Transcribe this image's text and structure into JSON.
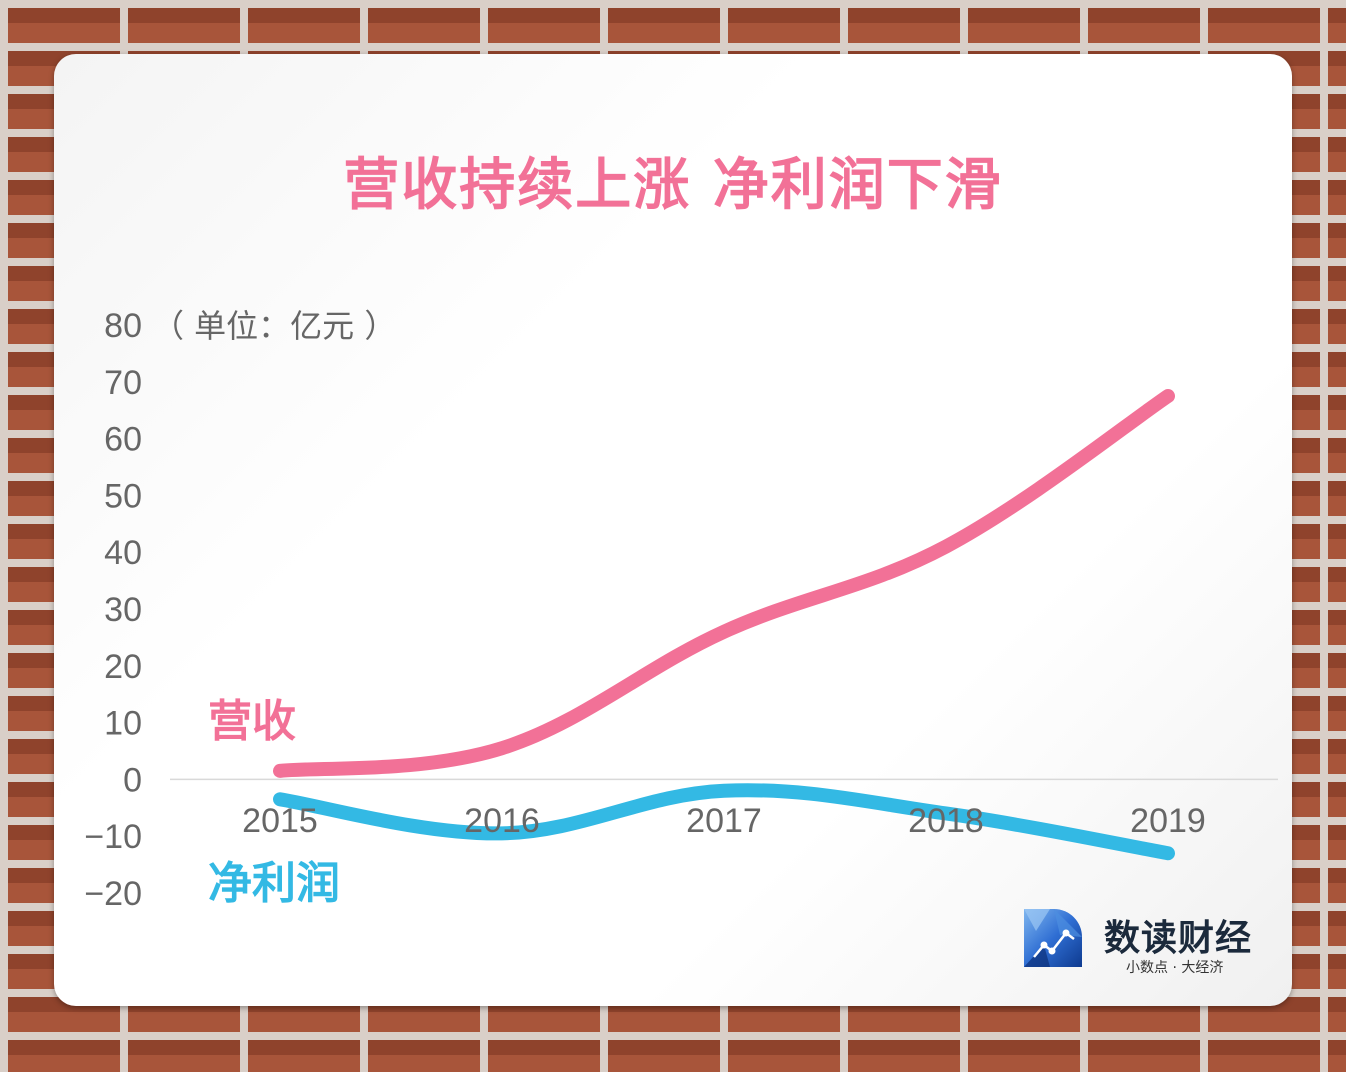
{
  "title": "营收持续上涨 净利润下滑",
  "chart_data": {
    "type": "line",
    "categories": [
      "2015",
      "2016",
      "2017",
      "2018",
      "2019"
    ],
    "series": [
      {
        "name": "营收",
        "values": [
          1.5,
          5.5,
          26,
          41,
          67.5
        ]
      },
      {
        "name": "净利润",
        "values": [
          -3.5,
          -9.5,
          -2,
          -6,
          -13
        ]
      }
    ],
    "unit_label": "（ 单位：亿元 ）",
    "ylim": [
      -20,
      80
    ],
    "yticks": [
      "80",
      "70",
      "60",
      "50",
      "40",
      "30",
      "20",
      "10",
      "0",
      "−10",
      "−20"
    ],
    "grid": false,
    "legend": "inline"
  },
  "colors": {
    "revenue": "#f27197",
    "profit": "#33b9e4",
    "axis_text": "#666666",
    "zero_line": "#d9d9d9"
  },
  "logo": {
    "name": "数读财经",
    "slogan": "小数点 · 大经济",
    "icon": "data-network-icon"
  }
}
